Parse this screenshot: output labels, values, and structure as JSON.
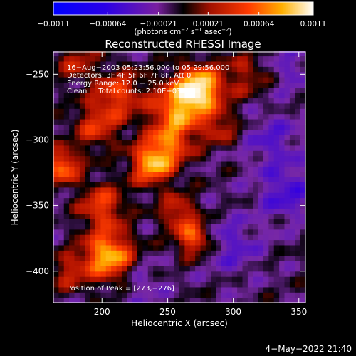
{
  "chart_data": {
    "type": "heatmap",
    "title": "Reconstructed RHESSI Image",
    "xlabel": "Heliocentric X (arcsec)",
    "ylabel": "Heliocentric Y (arcsec)",
    "xlim": [
      163,
      355
    ],
    "ylim": [
      -424,
      -233
    ],
    "x_ticks": [
      {
        "value": 200,
        "label": "200"
      },
      {
        "value": 250,
        "label": "250"
      },
      {
        "value": 300,
        "label": "300"
      },
      {
        "value": 350,
        "label": "350"
      }
    ],
    "y_ticks": [
      {
        "value": -250,
        "label": "−250"
      },
      {
        "value": -300,
        "label": "−300"
      },
      {
        "value": -350,
        "label": "−350"
      },
      {
        "value": -400,
        "label": "−400"
      }
    ],
    "colorbar": {
      "range": [
        -0.0011,
        0.0011
      ],
      "ticks": [
        {
          "value": -0.0011,
          "label": "−0.0011"
        },
        {
          "value": -0.00064,
          "label": "−0.00064"
        },
        {
          "value": -0.00021,
          "label": "−0.00021"
        },
        {
          "value": 0.00021,
          "label": "0.00021"
        },
        {
          "value": 0.00064,
          "label": "0.00064"
        },
        {
          "value": 0.0011,
          "label": "0.0011"
        }
      ],
      "unit_main": "(photons cm",
      "unit_exp1": "−2",
      "unit_mid1": " s",
      "unit_exp2": "−1",
      "unit_mid2": " asec",
      "unit_exp3": "−2",
      "unit_end": ")"
    },
    "annotations": {
      "time": "16−Aug−2003 05:23:56.000 to 05:29:56.000",
      "detectors": "Detectors: 3F 4F 5F 6F 7F 8F, Att 0",
      "energy": "Energy Range: 12.0 − 25.0 keV",
      "clean": "Clean     Total counts: 2.10E+03",
      "peak": "Position of Peak = [273,−276]"
    },
    "peak": [
      273,
      -276
    ],
    "blobs": [
      {
        "x": 275,
        "y": -260,
        "amp": 0.00105,
        "sigma": 12
      },
      {
        "x": 258,
        "y": -275,
        "amp": 0.0008,
        "sigma": 14
      },
      {
        "x": 238,
        "y": -318,
        "amp": 0.0009,
        "sigma": 11
      },
      {
        "x": 252,
        "y": -302,
        "amp": 0.0006,
        "sigma": 12
      },
      {
        "x": 212,
        "y": -265,
        "amp": 0.0006,
        "sigma": 13
      },
      {
        "x": 195,
        "y": -290,
        "amp": 0.0005,
        "sigma": 12
      },
      {
        "x": 170,
        "y": -320,
        "amp": 0.0008,
        "sigma": 9
      },
      {
        "x": 200,
        "y": -350,
        "amp": 0.0006,
        "sigma": 12
      },
      {
        "x": 205,
        "y": -388,
        "amp": 0.001,
        "sigma": 13
      },
      {
        "x": 270,
        "y": -375,
        "amp": 0.0007,
        "sigma": 9
      },
      {
        "x": 258,
        "y": -355,
        "amp": 0.0005,
        "sigma": 10
      },
      {
        "x": 290,
        "y": -290,
        "amp": 0.0004,
        "sigma": 10
      },
      {
        "x": 180,
        "y": -240,
        "amp": 0.0004,
        "sigma": 10
      },
      {
        "x": 310,
        "y": -250,
        "amp": 0.00035,
        "sigma": 12
      },
      {
        "x": 175,
        "y": -400,
        "amp": 0.0004,
        "sigma": 10
      },
      {
        "x": 340,
        "y": -340,
        "amp": -0.0004,
        "sigma": 14
      },
      {
        "x": 330,
        "y": -300,
        "amp": -0.0003,
        "sigma": 15
      },
      {
        "x": 300,
        "y": -380,
        "amp": -0.0003,
        "sigma": 15
      },
      {
        "x": 345,
        "y": -245,
        "amp": -0.00025,
        "sigma": 12
      },
      {
        "x": 230,
        "y": -410,
        "amp": -0.0002,
        "sigma": 12
      }
    ],
    "base_level": -0.00012,
    "noise_amp": 0.00022
  },
  "footer": {
    "timestamp": "4−May−2022 21:40"
  }
}
